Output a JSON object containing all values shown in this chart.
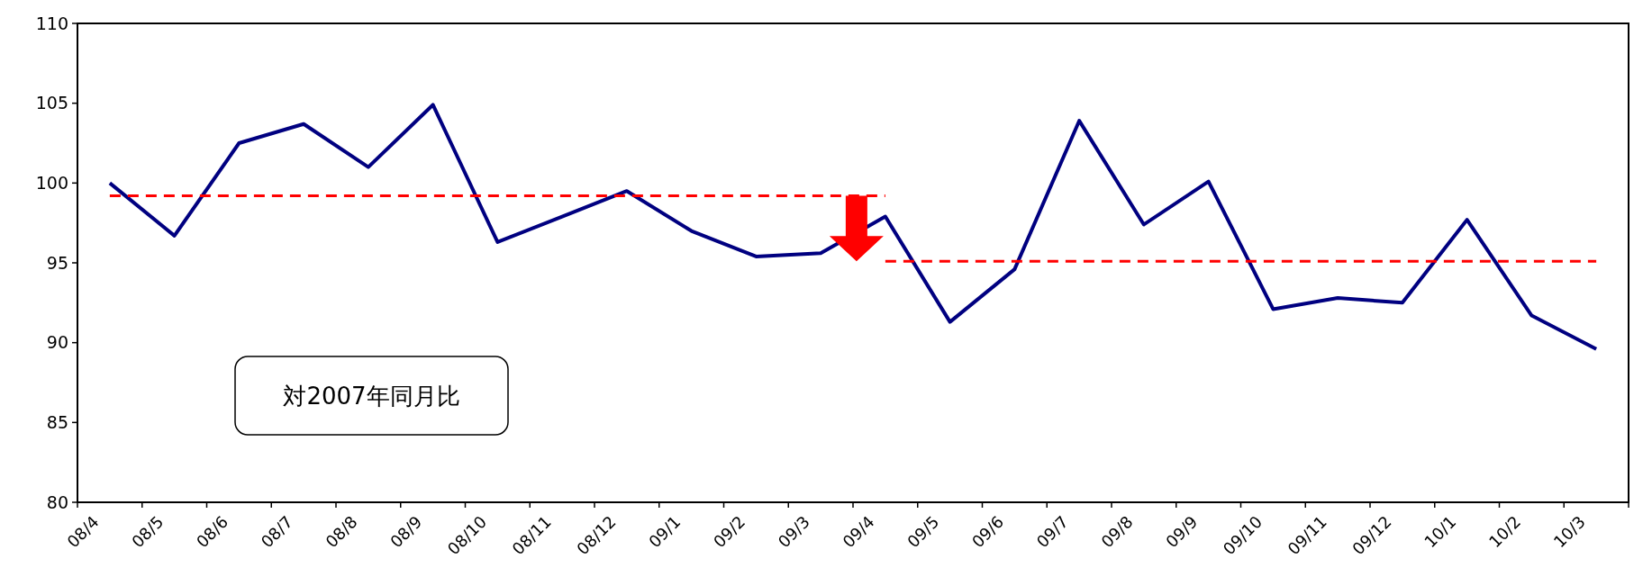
{
  "chart_data": {
    "type": "line",
    "categories": [
      "08/4",
      "08/5",
      "08/6",
      "08/7",
      "08/8",
      "08/9",
      "08/10",
      "08/11",
      "08/12",
      "09/1",
      "09/2",
      "09/3",
      "09/4",
      "09/5",
      "09/6",
      "09/7",
      "09/8",
      "09/9",
      "09/10",
      "09/11",
      "09/12",
      "10/1",
      "10/2",
      "10/3"
    ],
    "series": [
      {
        "color": "#000080",
        "line_style": "solid",
        "values": [
          100.0,
          96.7,
          102.5,
          103.7,
          101.0,
          104.9,
          96.3,
          97.9,
          99.5,
          97.0,
          95.4,
          95.6,
          97.9,
          91.3,
          94.6,
          103.9,
          97.4,
          100.1,
          92.1,
          92.8,
          92.5,
          97.7,
          91.7,
          89.6
        ]
      },
      {
        "color": "#ff0000",
        "line_style": "dashed",
        "values": [
          99.2,
          99.2,
          99.2,
          99.2,
          99.2,
          99.2,
          99.2,
          99.2,
          99.2,
          99.2,
          99.2,
          99.2,
          99.2,
          null,
          null,
          null,
          null,
          null,
          null,
          null,
          null,
          null,
          null,
          null
        ]
      },
      {
        "color": "#ff0000",
        "line_style": "dashed",
        "values": [
          null,
          null,
          null,
          null,
          null,
          null,
          null,
          null,
          null,
          null,
          null,
          null,
          95.1,
          95.1,
          95.1,
          95.1,
          95.1,
          95.1,
          95.1,
          95.1,
          95.1,
          95.1,
          95.1,
          95.1
        ]
      }
    ],
    "ylim": [
      80,
      110
    ],
    "yticks": [
      80,
      85,
      90,
      95,
      100,
      105,
      110
    ],
    "grid": false,
    "marker": "none",
    "annotations": [
      "対2007年同月比"
    ]
  }
}
